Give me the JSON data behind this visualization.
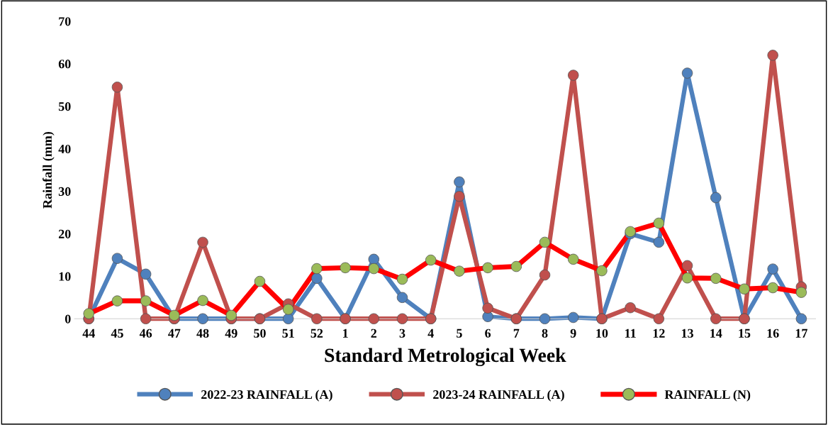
{
  "chart_data": {
    "type": "line",
    "xlabel": "Standard Metrological Week",
    "ylabel": "Rainfall (mm)",
    "categories": [
      "44",
      "45",
      "46",
      "47",
      "48",
      "49",
      "50",
      "51",
      "52",
      "1",
      "2",
      "3",
      "4",
      "5",
      "6",
      "7",
      "8",
      "9",
      "10",
      "11",
      "12",
      "13",
      "14",
      "15",
      "16",
      "17"
    ],
    "ylim": [
      0,
      70
    ],
    "yticks": [
      0,
      10,
      20,
      30,
      40,
      50,
      60,
      70
    ],
    "grid": false,
    "legend": "bottom",
    "marker": "circle",
    "line_style": "solid",
    "series": [
      {
        "name": "2022-23 RAINFALL (A)",
        "color": "#4f81bd",
        "values": [
          0,
          14.2,
          10.5,
          0,
          0,
          0,
          0,
          0,
          9.5,
          0,
          14,
          5,
          0,
          32.2,
          0.5,
          0,
          0,
          0.3,
          0,
          20,
          18,
          57.8,
          28.5,
          0,
          11.7,
          0
        ]
      },
      {
        "name": "2023-24 RAINFALL (A)",
        "color": "#c0504d",
        "values": [
          0,
          54.5,
          0,
          0,
          18,
          0,
          0,
          3.5,
          0,
          0,
          0,
          0,
          0,
          28.8,
          2.5,
          0,
          10.3,
          57.3,
          0,
          2.6,
          0,
          12.5,
          0,
          0,
          62,
          7.5
        ]
      },
      {
        "name": "RAINFALL (N)",
        "color": "#ff0000",
        "colors": [
          "#9bbb59",
          "#9bbb59",
          "#9bbb59",
          "#9bbb59",
          "#9bbb59",
          "#9bbb59",
          "#9bbb59",
          "#9bbb59",
          "#9bbb59",
          "#9bbb59",
          "#9bbb59",
          "#9bbb59",
          "#9bbb59",
          "#9bbb59",
          "#9bbb59",
          "#9bbb59",
          "#9bbb59",
          "#9bbb59",
          "#9bbb59",
          "#9bbb59",
          "#9bbb59",
          "#9bbb59",
          "#9bbb59",
          "#9bbb59",
          "#9bbb59",
          "#9bbb59"
        ],
        "values": [
          1.2,
          4.2,
          4.2,
          0.8,
          4.3,
          0.8,
          8.8,
          2.2,
          11.8,
          12,
          11.8,
          9.3,
          13.8,
          11.2,
          12,
          12.3,
          18,
          14,
          11.3,
          20.5,
          22.5,
          9.6,
          9.5,
          7,
          7.3,
          6.2
        ]
      }
    ]
  }
}
